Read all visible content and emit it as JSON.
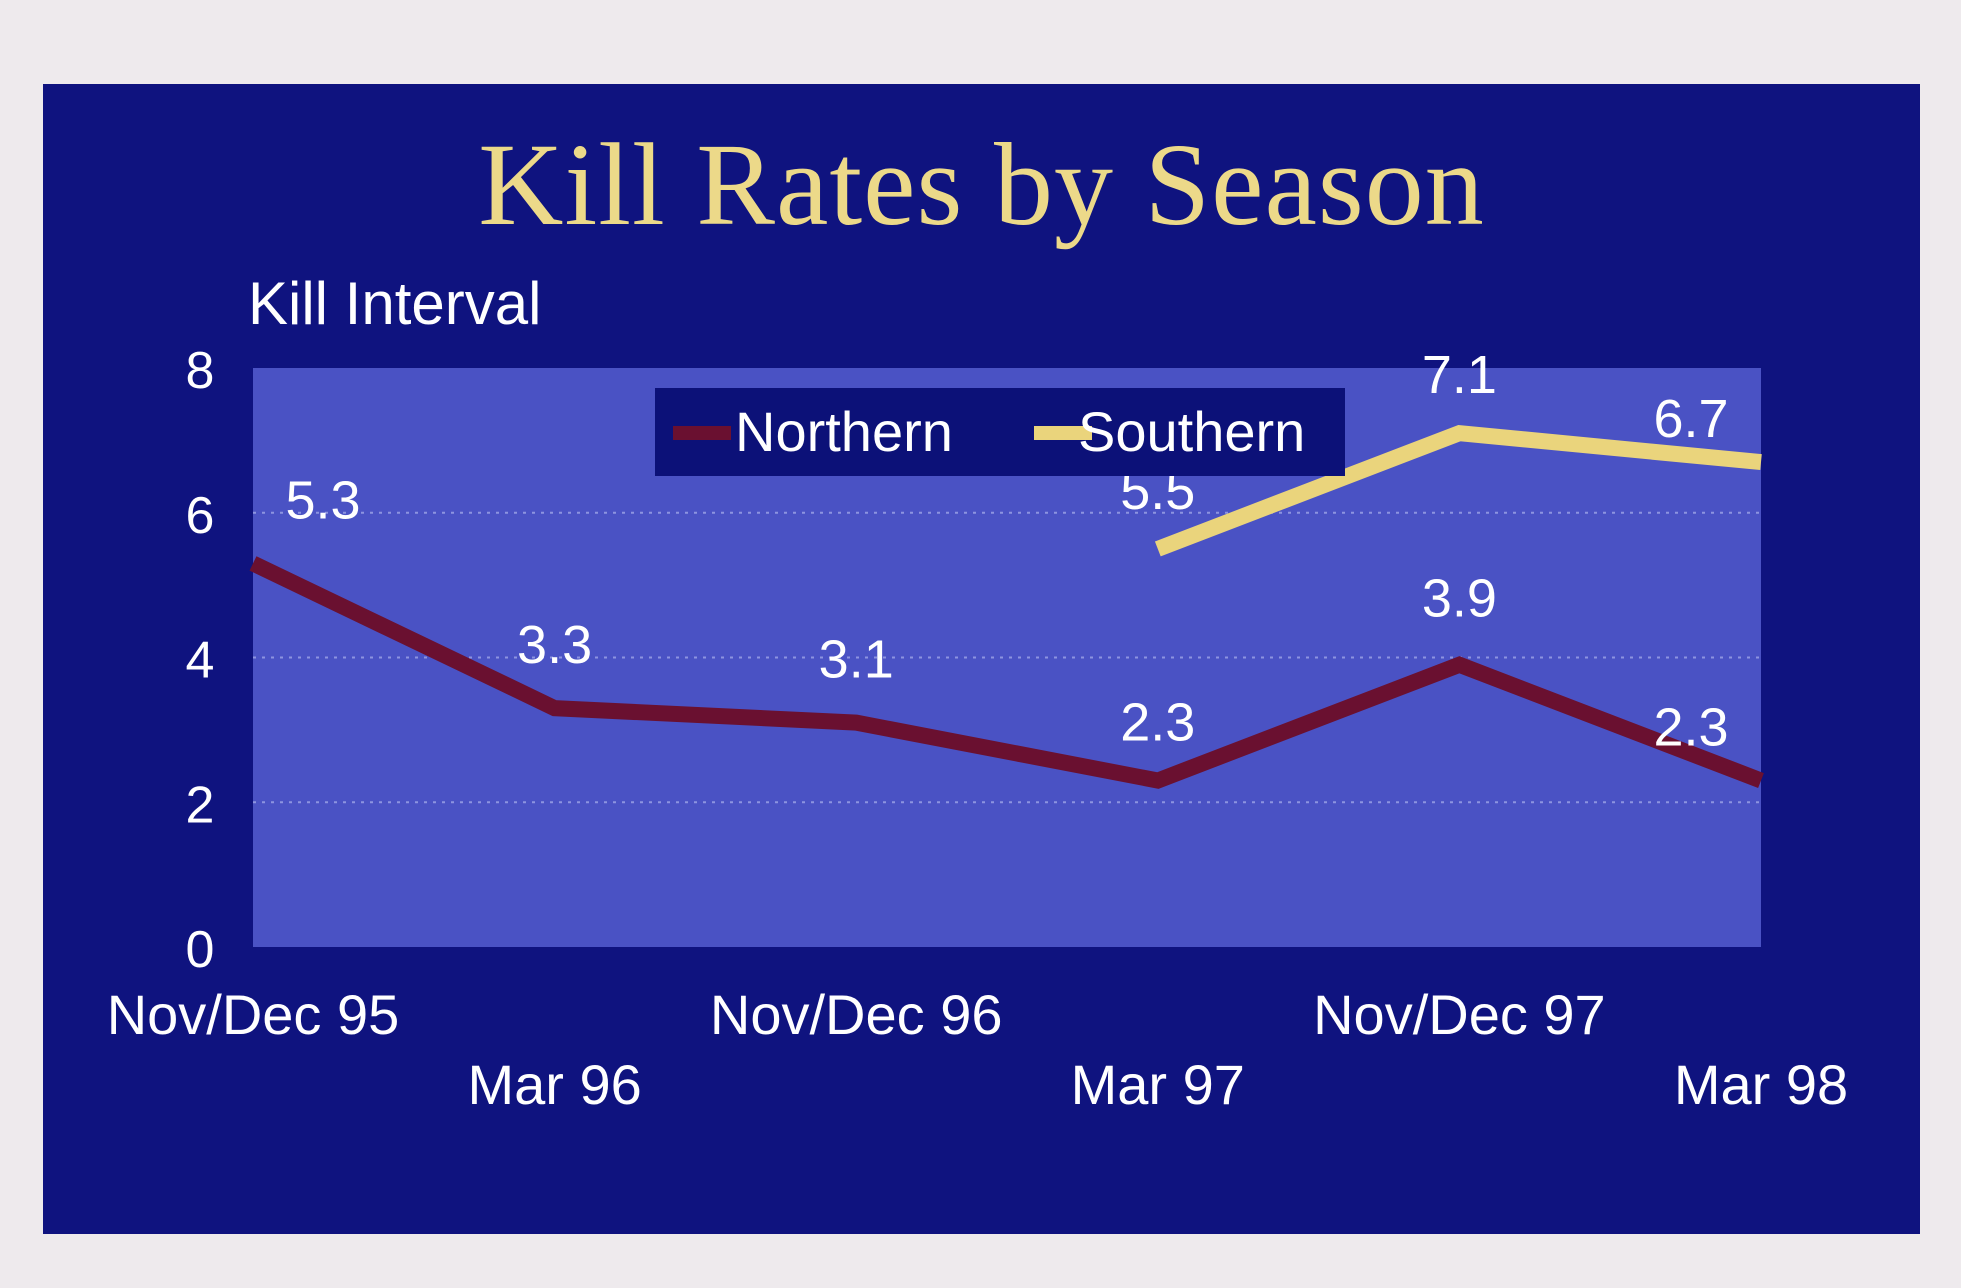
{
  "chart_data": {
    "type": "line",
    "title": "Kill Rates by Season",
    "ylabel": "Kill Interval",
    "xlabel": "",
    "ylim": [
      0,
      8
    ],
    "yticks": [
      "0",
      "2",
      "4",
      "6",
      "8"
    ],
    "categories": [
      "Nov/Dec 95",
      "Mar 96",
      "Nov/Dec 96",
      "Mar 97",
      "Nov/Dec 97",
      "Mar 98"
    ],
    "series": [
      {
        "name": "Northern",
        "color": "#6a1030",
        "values": [
          5.3,
          3.3,
          3.1,
          2.3,
          3.9,
          2.3
        ],
        "labels": [
          "5.3",
          "3.3",
          "3.1",
          "2.3",
          "3.9",
          "2.3"
        ]
      },
      {
        "name": "Southern",
        "color": "#ead47c",
        "values": [
          null,
          null,
          null,
          5.5,
          7.1,
          6.7
        ],
        "labels": [
          "",
          "",
          "",
          "5.5",
          "7.1",
          "6.7"
        ]
      }
    ],
    "legend_position": "top-center",
    "grid": true
  },
  "colors": {
    "background": "#eeeaed",
    "slide": "#0f137f",
    "plot_area": "#4a52c4",
    "title": "#ecd989",
    "text": "#ffffff"
  }
}
